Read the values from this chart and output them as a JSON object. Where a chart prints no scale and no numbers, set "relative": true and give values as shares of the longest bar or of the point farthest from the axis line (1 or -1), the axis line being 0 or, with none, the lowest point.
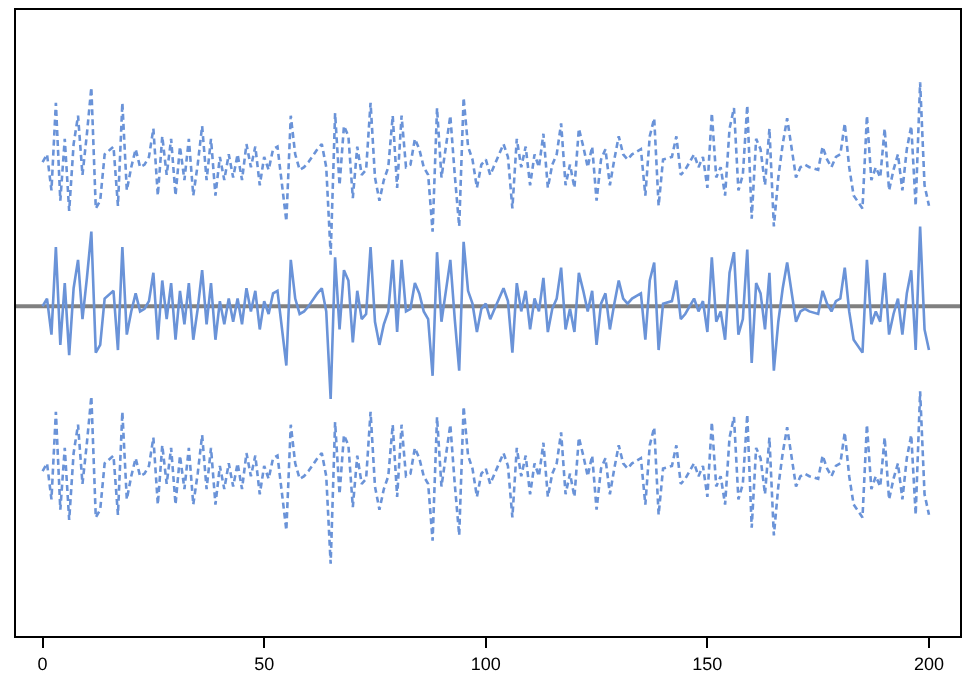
{
  "chart_data": {
    "type": "line",
    "relative": true,
    "xlim": [
      -6,
      207
    ],
    "xticks": [
      0,
      50,
      100,
      150,
      200
    ],
    "grid": false,
    "marker": "none",
    "x": [
      0,
      1,
      2,
      3,
      4,
      5,
      6,
      7,
      8,
      9,
      10,
      11,
      12,
      13,
      14,
      16,
      17,
      18,
      19,
      20,
      21,
      22,
      23,
      24,
      25,
      26,
      27,
      28,
      29,
      30,
      31,
      32,
      33,
      34,
      35,
      36,
      37,
      38,
      39,
      40,
      41,
      42,
      43,
      44,
      45,
      46,
      47,
      48,
      49,
      50,
      51,
      52,
      53,
      55,
      56,
      57,
      58,
      59,
      60,
      62,
      63,
      64,
      65,
      66,
      67,
      68,
      69,
      70,
      71,
      72,
      73,
      74,
      75,
      76,
      77,
      78,
      79,
      80,
      81,
      82,
      83,
      84,
      85,
      86,
      87,
      88,
      89,
      90,
      91,
      92,
      93,
      94,
      95,
      96,
      97,
      98,
      99,
      100,
      101,
      102,
      103,
      104,
      105,
      106,
      107,
      108,
      109,
      110,
      111,
      112,
      113,
      114,
      115,
      116,
      117,
      118,
      119,
      120,
      121,
      122,
      123,
      124,
      125,
      126,
      127,
      128,
      129,
      130,
      131,
      132,
      133,
      135,
      136,
      137,
      138,
      139,
      140,
      142,
      143,
      144,
      145,
      147,
      148,
      149,
      150,
      151,
      152,
      153,
      154,
      155,
      156,
      157,
      158,
      159,
      160,
      161,
      162,
      163,
      164,
      165,
      166,
      167,
      168,
      170,
      171,
      172,
      173,
      175,
      176,
      177,
      178,
      179,
      180,
      181,
      182,
      183,
      185,
      186,
      187,
      188,
      189,
      190,
      191,
      192,
      193,
      194,
      195,
      196,
      197,
      198,
      199,
      200
    ],
    "series": [
      {
        "color": "#6a93d8",
        "line_style": "solid",
        "values": [
          0.0,
          0.03,
          -0.11,
          0.23,
          -0.15,
          0.09,
          -0.19,
          0.07,
          0.18,
          -0.05,
          0.11,
          0.29,
          -0.18,
          -0.15,
          0.03,
          0.06,
          -0.17,
          0.23,
          -0.11,
          -0.02,
          0.05,
          -0.02,
          -0.01,
          0.02,
          0.13,
          -0.13,
          0.1,
          -0.05,
          0.09,
          -0.13,
          0.06,
          -0.07,
          0.09,
          -0.13,
          -0.01,
          0.14,
          -0.07,
          0.09,
          -0.13,
          0.02,
          -0.07,
          0.03,
          -0.06,
          0.03,
          -0.07,
          0.07,
          -0.02,
          0.06,
          -0.09,
          0.02,
          -0.03,
          0.05,
          0.06,
          -0.23,
          0.18,
          0.03,
          -0.03,
          -0.02,
          0.0,
          0.05,
          0.07,
          -0.02,
          -0.36,
          0.19,
          -0.09,
          0.14,
          0.1,
          -0.14,
          0.06,
          -0.05,
          -0.03,
          0.23,
          -0.06,
          -0.15,
          -0.07,
          -0.02,
          0.18,
          -0.1,
          0.18,
          -0.02,
          -0.01,
          0.09,
          0.05,
          -0.02,
          -0.05,
          -0.27,
          0.21,
          -0.06,
          0.06,
          0.18,
          -0.05,
          -0.25,
          0.25,
          0.06,
          0.01,
          -0.1,
          -0.01,
          0.01,
          -0.05,
          -0.01,
          0.03,
          0.07,
          0.02,
          -0.18,
          0.09,
          -0.02,
          0.06,
          -0.09,
          0.03,
          -0.02,
          0.11,
          -0.1,
          -0.01,
          0.03,
          0.15,
          -0.09,
          -0.01,
          -0.1,
          0.13,
          0.06,
          -0.02,
          0.06,
          -0.15,
          0.01,
          0.05,
          -0.09,
          0.01,
          0.1,
          0.03,
          0.01,
          0.03,
          0.05,
          -0.13,
          0.1,
          0.17,
          -0.17,
          0.01,
          0.02,
          0.1,
          -0.05,
          -0.03,
          0.03,
          -0.02,
          0.02,
          -0.1,
          0.19,
          -0.06,
          -0.02,
          -0.13,
          0.13,
          0.21,
          -0.11,
          -0.05,
          0.22,
          -0.22,
          0.09,
          0.05,
          -0.09,
          0.13,
          -0.25,
          -0.06,
          0.07,
          0.17,
          -0.06,
          -0.02,
          -0.01,
          -0.02,
          -0.03,
          0.06,
          0.01,
          -0.02,
          0.02,
          0.03,
          0.15,
          -0.02,
          -0.13,
          -0.18,
          0.18,
          -0.07,
          -0.02,
          -0.06,
          0.13,
          -0.11,
          -0.03,
          0.03,
          -0.11,
          0.05,
          0.14,
          -0.17,
          0.31,
          -0.09,
          -0.17
        ]
      },
      {
        "color": "#6a93d8",
        "line_style": "dashed",
        "values": [
          0.56,
          0.59,
          0.45,
          0.79,
          0.41,
          0.65,
          0.37,
          0.63,
          0.74,
          0.51,
          0.67,
          0.85,
          0.38,
          0.41,
          0.59,
          0.62,
          0.39,
          0.79,
          0.45,
          0.54,
          0.61,
          0.54,
          0.55,
          0.58,
          0.69,
          0.43,
          0.66,
          0.51,
          0.65,
          0.43,
          0.62,
          0.49,
          0.65,
          0.43,
          0.55,
          0.7,
          0.49,
          0.65,
          0.43,
          0.58,
          0.49,
          0.59,
          0.5,
          0.59,
          0.49,
          0.63,
          0.54,
          0.62,
          0.47,
          0.58,
          0.53,
          0.61,
          0.62,
          0.33,
          0.74,
          0.59,
          0.53,
          0.54,
          0.56,
          0.61,
          0.63,
          0.54,
          0.2,
          0.75,
          0.47,
          0.7,
          0.66,
          0.42,
          0.62,
          0.51,
          0.53,
          0.79,
          0.5,
          0.41,
          0.49,
          0.54,
          0.74,
          0.46,
          0.74,
          0.54,
          0.55,
          0.65,
          0.61,
          0.54,
          0.51,
          0.29,
          0.77,
          0.5,
          0.62,
          0.74,
          0.51,
          0.31,
          0.81,
          0.62,
          0.57,
          0.46,
          0.55,
          0.57,
          0.51,
          0.55,
          0.59,
          0.63,
          0.58,
          0.38,
          0.65,
          0.54,
          0.62,
          0.47,
          0.59,
          0.54,
          0.67,
          0.46,
          0.55,
          0.59,
          0.71,
          0.47,
          0.55,
          0.46,
          0.69,
          0.62,
          0.54,
          0.62,
          0.41,
          0.57,
          0.61,
          0.47,
          0.57,
          0.66,
          0.59,
          0.57,
          0.59,
          0.61,
          0.43,
          0.66,
          0.73,
          0.39,
          0.57,
          0.58,
          0.66,
          0.51,
          0.53,
          0.59,
          0.54,
          0.58,
          0.46,
          0.75,
          0.5,
          0.54,
          0.43,
          0.69,
          0.77,
          0.45,
          0.51,
          0.78,
          0.34,
          0.65,
          0.61,
          0.47,
          0.69,
          0.31,
          0.5,
          0.63,
          0.73,
          0.5,
          0.54,
          0.55,
          0.54,
          0.53,
          0.62,
          0.57,
          0.54,
          0.58,
          0.59,
          0.71,
          0.54,
          0.43,
          0.38,
          0.74,
          0.49,
          0.54,
          0.5,
          0.69,
          0.45,
          0.53,
          0.59,
          0.45,
          0.61,
          0.7,
          0.39,
          0.87,
          0.47,
          0.39
        ]
      },
      {
        "color": "#6a93d8",
        "line_style": "dashed",
        "values": [
          -0.64,
          -0.61,
          -0.75,
          -0.41,
          -0.79,
          -0.55,
          -0.83,
          -0.57,
          -0.46,
          -0.69,
          -0.53,
          -0.35,
          -0.82,
          -0.79,
          -0.61,
          -0.58,
          -0.81,
          -0.41,
          -0.75,
          -0.66,
          -0.59,
          -0.66,
          -0.65,
          -0.62,
          -0.51,
          -0.77,
          -0.54,
          -0.69,
          -0.55,
          -0.77,
          -0.58,
          -0.71,
          -0.55,
          -0.77,
          -0.65,
          -0.5,
          -0.71,
          -0.55,
          -0.77,
          -0.62,
          -0.71,
          -0.61,
          -0.7,
          -0.61,
          -0.71,
          -0.57,
          -0.66,
          -0.58,
          -0.73,
          -0.62,
          -0.67,
          -0.59,
          -0.58,
          -0.87,
          -0.46,
          -0.61,
          -0.67,
          -0.66,
          -0.64,
          -0.59,
          -0.57,
          -0.66,
          -1.0,
          -0.45,
          -0.73,
          -0.5,
          -0.54,
          -0.78,
          -0.58,
          -0.69,
          -0.67,
          -0.41,
          -0.7,
          -0.79,
          -0.71,
          -0.66,
          -0.46,
          -0.74,
          -0.46,
          -0.66,
          -0.65,
          -0.55,
          -0.59,
          -0.66,
          -0.69,
          -0.91,
          -0.43,
          -0.7,
          -0.58,
          -0.46,
          -0.69,
          -0.89,
          -0.39,
          -0.58,
          -0.63,
          -0.74,
          -0.65,
          -0.63,
          -0.69,
          -0.65,
          -0.61,
          -0.57,
          -0.62,
          -0.82,
          -0.55,
          -0.66,
          -0.58,
          -0.73,
          -0.61,
          -0.66,
          -0.53,
          -0.74,
          -0.65,
          -0.61,
          -0.49,
          -0.73,
          -0.65,
          -0.74,
          -0.51,
          -0.58,
          -0.66,
          -0.58,
          -0.79,
          -0.63,
          -0.59,
          -0.73,
          -0.63,
          -0.54,
          -0.61,
          -0.63,
          -0.61,
          -0.59,
          -0.77,
          -0.54,
          -0.47,
          -0.81,
          -0.63,
          -0.62,
          -0.54,
          -0.69,
          -0.67,
          -0.61,
          -0.66,
          -0.62,
          -0.74,
          -0.45,
          -0.7,
          -0.66,
          -0.77,
          -0.51,
          -0.43,
          -0.75,
          -0.69,
          -0.42,
          -0.86,
          -0.55,
          -0.59,
          -0.73,
          -0.51,
          -0.89,
          -0.7,
          -0.57,
          -0.47,
          -0.7,
          -0.66,
          -0.65,
          -0.66,
          -0.67,
          -0.58,
          -0.63,
          -0.66,
          -0.62,
          -0.61,
          -0.49,
          -0.66,
          -0.77,
          -0.82,
          -0.46,
          -0.71,
          -0.66,
          -0.7,
          -0.51,
          -0.75,
          -0.67,
          -0.61,
          -0.75,
          -0.59,
          -0.5,
          -0.81,
          -0.33,
          -0.73,
          -0.81
        ]
      }
    ],
    "ref_lines": [
      {
        "axis": "y",
        "value": 0,
        "color": "#808080",
        "line_style": "solid"
      }
    ]
  }
}
